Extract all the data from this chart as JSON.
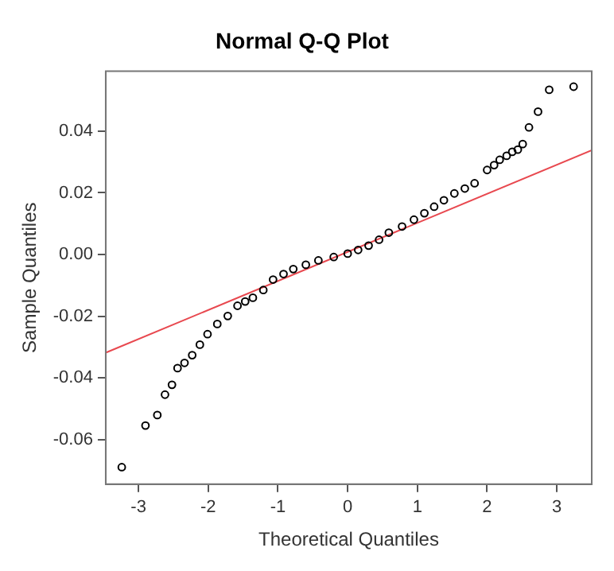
{
  "chart_data": {
    "type": "scatter",
    "title": "Normal Q-Q Plot",
    "xlabel": "Theoretical Quantiles",
    "ylabel": "Sample Quantiles",
    "series": [
      {
        "type": "scatter",
        "marker": "circle",
        "color": "#000000",
        "x": [
          -3.24,
          -2.9,
          -2.73,
          -2.62,
          -2.52,
          -2.44,
          -2.34,
          -2.23,
          -2.12,
          -2.01,
          -1.87,
          -1.72,
          -1.58,
          -1.47,
          -1.36,
          -1.21,
          -1.07,
          -0.92,
          -0.78,
          -0.6,
          -0.42,
          -0.2,
          0,
          0.15,
          0.3,
          0.45,
          0.59,
          0.78,
          0.95,
          1.1,
          1.24,
          1.38,
          1.53,
          1.68,
          1.82,
          2.0,
          2.1,
          2.18,
          2.28,
          2.36,
          2.44,
          2.51,
          2.6,
          2.73,
          2.89,
          3.24
        ],
        "values": [
          -0.0689,
          -0.0554,
          -0.052,
          -0.0454,
          -0.0422,
          -0.0368,
          -0.0351,
          -0.0326,
          -0.0292,
          -0.0258,
          -0.0225,
          -0.0199,
          -0.0166,
          -0.0152,
          -0.014,
          -0.0115,
          -0.0081,
          -0.0063,
          -0.0047,
          -0.0033,
          -0.0019,
          -0.0008,
          0.0003,
          0.0015,
          0.0029,
          0.0048,
          0.0071,
          0.0091,
          0.0113,
          0.0134,
          0.0155,
          0.0176,
          0.0198,
          0.0214,
          0.0231,
          0.0274,
          0.029,
          0.0307,
          0.032,
          0.0333,
          0.034,
          0.0358,
          0.0412,
          0.0463,
          0.0534,
          0.0544
        ]
      },
      {
        "type": "line",
        "marker": "none",
        "color": "#e8484f",
        "x": [
          -3.47,
          3.5
        ],
        "values": [
          -0.0318,
          0.0338
        ]
      }
    ],
    "grid": false,
    "legend": false,
    "xlim": [
      -3.47,
      3.5
    ],
    "xticks": [
      -3,
      -2,
      -1,
      0,
      1,
      2,
      3
    ],
    "ylim": [
      -0.0744,
      0.0594
    ],
    "yticks": [
      {
        "value": -0.06,
        "label": "-0.06"
      },
      {
        "value": -0.04,
        "label": "-0.04"
      },
      {
        "value": -0.02,
        "label": "-0.02"
      },
      {
        "value": 0,
        "label": "0.00"
      },
      {
        "value": 0.02,
        "label": "0.02"
      },
      {
        "value": 0.04,
        "label": "0.04"
      }
    ]
  }
}
